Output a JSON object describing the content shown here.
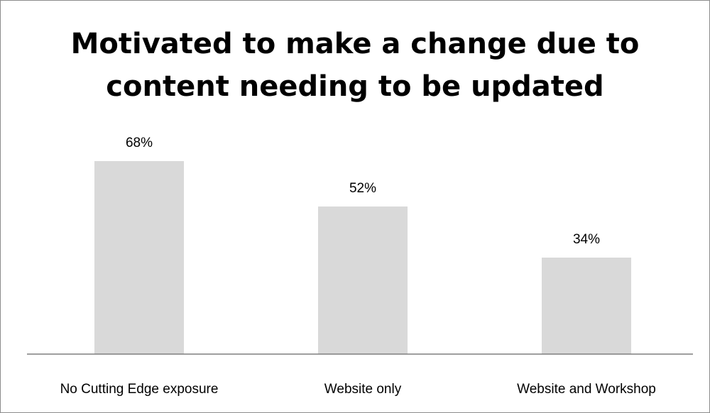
{
  "chart_data": {
    "type": "bar",
    "title": "Motivated to make a change due to content needing to be updated",
    "title_lines": [
      "Motivated to make a change due to",
      "content needing to be updated"
    ],
    "categories": [
      "No Cutting Edge exposure",
      "Website only",
      "Website and Workshop"
    ],
    "values": [
      68,
      52,
      34
    ],
    "data_labels": [
      "68%",
      "52%",
      "34%"
    ],
    "xlabel": "",
    "ylabel": "",
    "ylim": [
      0,
      100
    ],
    "grid": false,
    "legend": "none",
    "bar_color": "#d9d9d9",
    "axis_color": "#7f7f7f"
  }
}
